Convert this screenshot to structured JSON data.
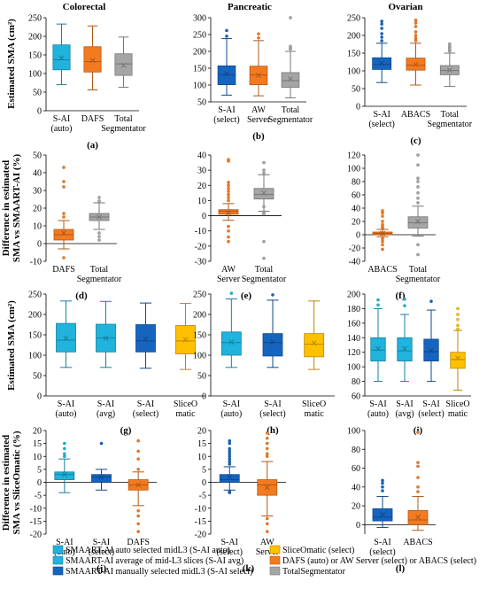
{
  "columns": [
    "Colorectal",
    "Pancreatic",
    "Ovarian"
  ],
  "row_labels": [
    [
      "Estimated SMA (cm²)"
    ],
    [
      "Difference in estimated",
      "SMA vs SMAART-AI (%)"
    ],
    [
      "Estimated SMA (cm²)"
    ],
    [
      "Difference in estimated",
      "SMA vs SliceOmatic (%)"
    ]
  ],
  "colors": {
    "cyan": "#1fb3dd",
    "blue": "#1565c0",
    "orange": "#f47a20",
    "gray": "#a5a5a5",
    "yellow": "#ffc000"
  },
  "legend": [
    {
      "label": "SMAART-AI auto selected midL3 (S-AI auto)",
      "color": "cyan"
    },
    {
      "label": "SliceOmatic (select)",
      "color": "yellow"
    },
    {
      "label": "SMAART-AI average of mid-L3 slices (S-AI avg)",
      "color": "cyan"
    },
    {
      "label": "DAFS (auto) or AW Server (select) or ABACS (select)",
      "color": "orange"
    },
    {
      "label": "SMAART-AI manually selected midL3 (S-AI select)",
      "color": "blue"
    },
    {
      "label": "TotalSegmentator",
      "color": "gray"
    }
  ],
  "chart_data": [
    {
      "id": "a",
      "panel_label": "(a)",
      "type": "box",
      "ylim": [
        0,
        250
      ],
      "yticks": [
        0,
        50,
        100,
        150,
        200,
        250
      ],
      "categories": [
        [
          "S-AI",
          "(auto)"
        ],
        [
          "DAFS"
        ],
        [
          "Total",
          "Segmentator"
        ]
      ],
      "boxes": [
        {
          "color": "cyan",
          "min": 70,
          "q1": 110,
          "median": 137,
          "q3": 177,
          "max": 233,
          "mean": 142,
          "outliers": []
        },
        {
          "color": "orange",
          "min": 56,
          "q1": 104,
          "median": 132,
          "q3": 172,
          "max": 228,
          "mean": 135,
          "outliers": []
        },
        {
          "color": "gray",
          "min": 63,
          "q1": 95,
          "median": 126,
          "q3": 153,
          "max": 198,
          "mean": 122,
          "outliers": []
        }
      ]
    },
    {
      "id": "b",
      "panel_label": "(b)",
      "type": "box",
      "ylim": [
        50,
        300
      ],
      "yticks": [
        50,
        100,
        150,
        200,
        250,
        300
      ],
      "categories": [
        [
          "S-AI",
          "(select)"
        ],
        [
          "AW",
          "Server"
        ],
        [
          "Total",
          "Segmentator"
        ]
      ],
      "boxes": [
        {
          "color": "blue",
          "min": 70,
          "q1": 101,
          "median": 131,
          "q3": 157,
          "max": 238,
          "mean": 133,
          "outliers": [
            245,
            262
          ]
        },
        {
          "color": "orange",
          "min": 68,
          "q1": 101,
          "median": 130,
          "q3": 156,
          "max": 232,
          "mean": 129,
          "outliers": [
            240,
            252
          ]
        },
        {
          "color": "gray",
          "min": 62,
          "q1": 93,
          "median": 113,
          "q3": 137,
          "max": 200,
          "mean": 118,
          "outliers": [
            207,
            210,
            215,
            300
          ]
        }
      ]
    },
    {
      "id": "c",
      "panel_label": "(c)",
      "type": "box",
      "ylim": [
        0,
        250
      ],
      "yticks": [
        0,
        50,
        100,
        150,
        200,
        250
      ],
      "categories": [
        [
          "S-AI",
          "(select)"
        ],
        [
          "ABACS"
        ],
        [
          "Total",
          "Segmentator"
        ]
      ],
      "boxes": [
        {
          "color": "blue",
          "min": 67,
          "q1": 104,
          "median": 118,
          "q3": 137,
          "max": 178,
          "mean": 121,
          "outliers": [
            185,
            195,
            205,
            220,
            232,
            240
          ]
        },
        {
          "color": "orange",
          "min": 60,
          "q1": 102,
          "median": 116,
          "q3": 136,
          "max": 178,
          "mean": 118,
          "outliers": [
            185,
            192,
            200,
            210,
            225,
            235,
            243
          ]
        },
        {
          "color": "gray",
          "min": 56,
          "q1": 89,
          "median": 101,
          "q3": 115,
          "max": 150,
          "mean": 102,
          "outliers": [
            156,
            160,
            165,
            170,
            176
          ]
        }
      ]
    },
    {
      "id": "d",
      "panel_label": "(d)",
      "type": "box",
      "ylim": [
        -10,
        50
      ],
      "yticks": [
        -10,
        0,
        10,
        20,
        30,
        40,
        50
      ],
      "categories": [
        [
          "DAFS"
        ],
        [
          "Total",
          "Segmentator"
        ]
      ],
      "boxes": [
        {
          "color": "orange",
          "min": -3,
          "q1": 2,
          "median": 5,
          "q3": 8,
          "max": 13,
          "mean": 6,
          "outliers": [
            -8,
            15,
            17,
            32,
            35,
            43
          ]
        },
        {
          "color": "gray",
          "min": 8,
          "q1": 13,
          "median": 15,
          "q3": 17,
          "max": 23,
          "mean": 15,
          "outliers": [
            2,
            4,
            6,
            24,
            26
          ]
        }
      ]
    },
    {
      "id": "e",
      "panel_label": "(e)",
      "type": "box",
      "ylim": [
        -30,
        40
      ],
      "yticks": [
        -30,
        -20,
        -10,
        0,
        10,
        20,
        30,
        40
      ],
      "categories": [
        [
          "AW",
          "Server"
        ],
        [
          "Total",
          "Segmentator"
        ]
      ],
      "boxes": [
        {
          "color": "orange",
          "min": -3,
          "q1": 1,
          "median": 3,
          "q3": 4,
          "max": 8,
          "mean": 2,
          "outliers": [
            -17,
            -14,
            -10,
            -7,
            10,
            12,
            14,
            16,
            18,
            20,
            22,
            36,
            37
          ]
        },
        {
          "color": "gray",
          "min": 3,
          "q1": 11,
          "median": 14,
          "q3": 18,
          "max": 27,
          "mean": 15,
          "outliers": [
            -28,
            -17,
            1,
            2,
            6,
            28,
            30,
            35
          ]
        }
      ]
    },
    {
      "id": "f",
      "panel_label": "(f)",
      "type": "box",
      "ylim": [
        -40,
        120
      ],
      "yticks": [
        -40,
        -20,
        0,
        20,
        40,
        60,
        80,
        100,
        120
      ],
      "categories": [
        [
          "ABACS"
        ],
        [
          "Total",
          "Segmentator"
        ]
      ],
      "boxes": [
        {
          "color": "orange",
          "min": -3,
          "q1": 0,
          "median": 2,
          "q3": 4,
          "max": 8,
          "mean": 2,
          "outliers": [
            -22,
            -15,
            -10,
            -6,
            10,
            12,
            15,
            20,
            28,
            33,
            36
          ]
        },
        {
          "color": "gray",
          "min": -2,
          "q1": 10,
          "median": 18,
          "q3": 27,
          "max": 43,
          "mean": 20,
          "outliers": [
            -30,
            -15,
            48,
            55,
            63,
            72,
            80,
            85,
            105,
            120
          ]
        }
      ]
    },
    {
      "id": "g",
      "panel_label": "(g)",
      "type": "box",
      "ylim": [
        0,
        250
      ],
      "yticks": [
        0,
        50,
        100,
        150,
        200,
        250
      ],
      "categories": [
        [
          "S-AI",
          "(auto)"
        ],
        [
          "S-AI",
          "(avg)"
        ],
        [
          "S-AI",
          "(select)"
        ],
        [
          "SliceO",
          "matic"
        ]
      ],
      "boxes": [
        {
          "color": "cyan",
          "min": 70,
          "q1": 108,
          "median": 137,
          "q3": 178,
          "max": 233,
          "mean": 142,
          "outliers": []
        },
        {
          "color": "cyan",
          "min": 70,
          "q1": 108,
          "median": 142,
          "q3": 176,
          "max": 232,
          "mean": 142,
          "outliers": []
        },
        {
          "color": "blue",
          "min": 68,
          "q1": 108,
          "median": 135,
          "q3": 175,
          "max": 228,
          "mean": 140,
          "outliers": []
        },
        {
          "color": "yellow",
          "min": 65,
          "q1": 103,
          "median": 135,
          "q3": 173,
          "max": 227,
          "mean": 138,
          "outliers": []
        }
      ]
    },
    {
      "id": "h",
      "panel_label": "(h)",
      "type": "box",
      "ylim": [
        0,
        250
      ],
      "yticks": [
        0,
        50,
        100,
        150,
        200,
        250
      ],
      "categories": [
        [
          "S-AI",
          "(auto)"
        ],
        [
          "S-AI",
          "(select)"
        ],
        [
          "SliceO",
          "matic"
        ]
      ],
      "boxes": [
        {
          "color": "cyan",
          "min": 70,
          "q1": 100,
          "median": 131,
          "q3": 157,
          "max": 238,
          "mean": 132,
          "outliers": [
            252
          ]
        },
        {
          "color": "blue",
          "min": 70,
          "q1": 98,
          "median": 131,
          "q3": 153,
          "max": 235,
          "mean": 132,
          "outliers": [
            248
          ]
        },
        {
          "color": "yellow",
          "min": 65,
          "q1": 96,
          "median": 127,
          "q3": 153,
          "max": 233,
          "mean": 130,
          "outliers": []
        }
      ]
    },
    {
      "id": "i",
      "panel_label": "(i)",
      "type": "box",
      "ylim": [
        60,
        200
      ],
      "yticks": [
        60,
        80,
        100,
        120,
        140,
        160,
        180,
        200
      ],
      "categories": [
        [
          "S-AI",
          "(auto)"
        ],
        [
          "S-AI",
          "(avg)"
        ],
        [
          "S-AI",
          "(select)"
        ],
        [
          "SliceO",
          "matic"
        ]
      ],
      "boxes": [
        {
          "color": "cyan",
          "min": 80,
          "q1": 108,
          "median": 123,
          "q3": 140,
          "max": 180,
          "mean": 125,
          "outliers": [
            185,
            192
          ]
        },
        {
          "color": "cyan",
          "min": 80,
          "q1": 108,
          "median": 122,
          "q3": 140,
          "max": 172,
          "mean": 125,
          "outliers": [
            184,
            193
          ]
        },
        {
          "color": "blue",
          "min": 80,
          "q1": 108,
          "median": 121,
          "q3": 138,
          "max": 178,
          "mean": 122,
          "outliers": [
            190
          ]
        },
        {
          "color": "yellow",
          "min": 68,
          "q1": 98,
          "median": 110,
          "q3": 120,
          "max": 150,
          "mean": 112,
          "outliers": [
            152,
            157,
            165,
            172,
            180
          ]
        }
      ]
    },
    {
      "id": "j",
      "panel_label": "(j)",
      "type": "box",
      "ylim": [
        -20,
        20
      ],
      "yticks": [
        -20,
        -15,
        -10,
        -5,
        0,
        5,
        10,
        15,
        20
      ],
      "categories": [
        [
          "S-AI",
          "(auto)"
        ],
        [
          "S-AI",
          "(select)"
        ],
        [
          "DAFS"
        ]
      ],
      "boxes": [
        {
          "color": "cyan",
          "min": -4,
          "q1": 1,
          "median": 3,
          "q3": 4,
          "max": 9,
          "mean": 3,
          "outliers": [
            10,
            11,
            13,
            15
          ]
        },
        {
          "color": "blue",
          "min": -3,
          "q1": 0,
          "median": 2,
          "q3": 3,
          "max": 5,
          "mean": 2,
          "outliers": [
            15
          ]
        },
        {
          "color": "orange",
          "min": -9,
          "q1": -3,
          "median": -1,
          "q3": 1,
          "max": 4,
          "mean": -1,
          "outliers": [
            -19,
            -16,
            -13,
            -11,
            5,
            9,
            12,
            16
          ]
        }
      ]
    },
    {
      "id": "k",
      "panel_label": "(k)",
      "type": "box",
      "ylim": [
        -20,
        20
      ],
      "yticks": [
        -20,
        -15,
        -10,
        -5,
        0,
        5,
        10,
        15,
        20
      ],
      "categories": [
        [
          "S-AI",
          "(select)"
        ],
        [
          "AW",
          "Server"
        ]
      ],
      "boxes": [
        {
          "color": "blue",
          "min": -3,
          "q1": 0,
          "median": 1,
          "q3": 3,
          "max": 6,
          "mean": 2,
          "outliers": [
            -4,
            -3.5,
            7,
            8,
            9,
            10,
            11,
            12,
            13,
            15,
            16
          ]
        },
        {
          "color": "orange",
          "min": -13,
          "q1": -5,
          "median": -1,
          "q3": 1,
          "max": 8,
          "mean": -2,
          "outliers": [
            -19,
            -16,
            -14,
            10,
            11,
            13,
            15,
            17,
            19
          ]
        }
      ]
    },
    {
      "id": "l",
      "panel_label": "(l)",
      "type": "box",
      "ylim": [
        -10,
        100
      ],
      "yticks": [
        0,
        20,
        40,
        60,
        80,
        100
      ],
      "categories": [
        [
          "S-AI",
          "(select)"
        ],
        [
          "ABACS"
        ]
      ],
      "boxes": [
        {
          "color": "blue",
          "min": -3,
          "q1": 4,
          "median": 8,
          "q3": 17,
          "max": 30,
          "mean": 11,
          "outliers": [
            36,
            40,
            44,
            47
          ]
        },
        {
          "color": "orange",
          "min": -6,
          "q1": 0,
          "median": 5,
          "q3": 15,
          "max": 30,
          "mean": 8,
          "outliers": [
            35,
            40,
            50,
            62,
            66,
            98
          ]
        }
      ]
    }
  ]
}
